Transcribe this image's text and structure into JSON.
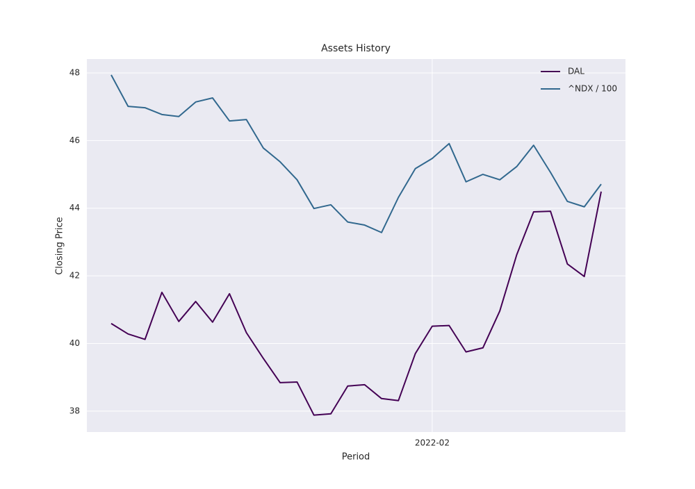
{
  "chart_data": {
    "type": "line",
    "title": "Assets History",
    "xlabel": "Period",
    "ylabel": "Closing Price",
    "categories": [
      null,
      null,
      null,
      null,
      null,
      null,
      null,
      null,
      null,
      null,
      null,
      null,
      null,
      null,
      null,
      null,
      null,
      null,
      null,
      "2022-02",
      null,
      null,
      null,
      null,
      null,
      null,
      null,
      null,
      null,
      null
    ],
    "series": [
      {
        "name": "DAL",
        "color": "#440154",
        "values": [
          40.59,
          40.28,
          40.12,
          41.51,
          40.65,
          41.24,
          40.63,
          41.47,
          40.32,
          39.56,
          38.84,
          38.86,
          37.88,
          37.92,
          38.74,
          38.78,
          38.37,
          38.31,
          39.7,
          40.51,
          40.53,
          39.75,
          39.87,
          40.96,
          42.62,
          43.89,
          43.91,
          42.35,
          41.98,
          44.49
        ]
      },
      {
        "name": "^NDX / 100",
        "color": "#31688e",
        "values": [
          47.94,
          47.01,
          46.97,
          46.77,
          46.71,
          47.14,
          47.26,
          46.58,
          46.62,
          45.78,
          45.37,
          44.84,
          43.99,
          44.1,
          43.59,
          43.5,
          43.28,
          44.32,
          45.17,
          45.47,
          45.91,
          44.78,
          45.0,
          44.84,
          45.23,
          45.86,
          45.06,
          44.2,
          44.04,
          44.71
        ]
      }
    ],
    "ylim": [
      37.38,
      48.41
    ],
    "yticks": [
      38,
      40,
      42,
      44,
      46,
      48
    ],
    "grid": true,
    "legend": "upper right"
  }
}
